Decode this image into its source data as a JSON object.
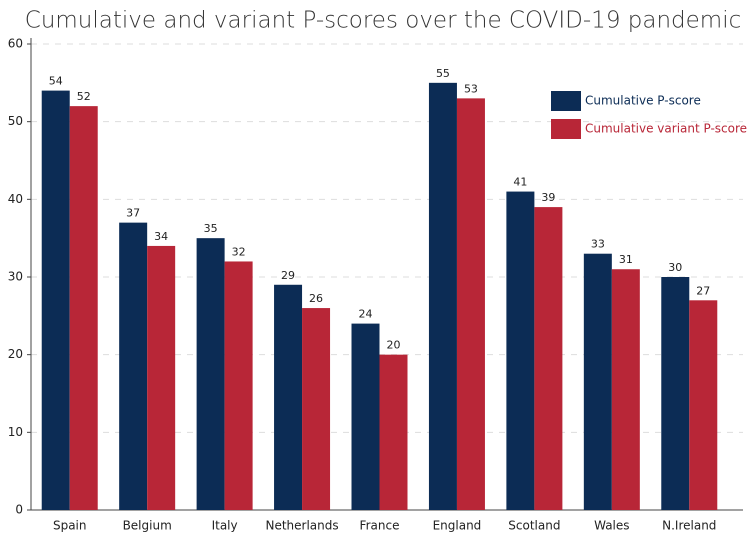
{
  "chart_data": {
    "type": "bar",
    "title": "Cumulative and variant P-scores over the COVID-19 pandemic",
    "categories": [
      "Spain",
      "Belgium",
      "Italy",
      "Netherlands",
      "France",
      "England",
      "Scotland",
      "Wales",
      "N.Ireland"
    ],
    "series": [
      {
        "name": "Cumulative P-score",
        "color": "#0c2c55",
        "values": [
          54,
          37,
          35,
          29,
          24,
          55,
          41,
          33,
          30
        ]
      },
      {
        "name": "Cumulative variant P-score",
        "color": "#b82637",
        "values": [
          52,
          34,
          32,
          26,
          20,
          53,
          39,
          31,
          27
        ]
      }
    ],
    "ylim": [
      0,
      60
    ],
    "yticks": [
      0,
      10,
      20,
      30,
      40,
      50,
      60
    ],
    "grid": true,
    "legend": "upper-right"
  }
}
